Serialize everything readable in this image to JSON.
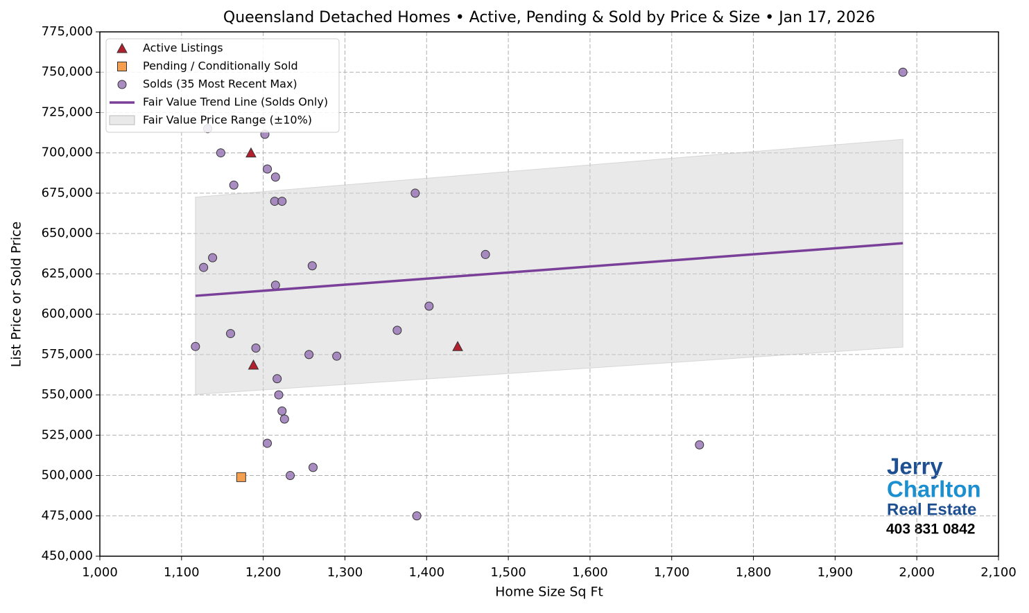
{
  "chart_data": {
    "type": "scatter",
    "title": "Queensland Detached Homes • Active, Pending & Sold by Price & Size • Jan 17, 2026",
    "x_label": "Home Size Sq Ft",
    "y_label": "List Price or Sold Price",
    "xlim": [
      1000,
      2100
    ],
    "ylim": [
      450000,
      775000
    ],
    "xticks": [
      {
        "value": 1000,
        "label": "1,000"
      },
      {
        "value": 1100,
        "label": "1,100"
      },
      {
        "value": 1200,
        "label": "1,200"
      },
      {
        "value": 1300,
        "label": "1,300"
      },
      {
        "value": 1400,
        "label": "1,400"
      },
      {
        "value": 1500,
        "label": "1,500"
      },
      {
        "value": 1600,
        "label": "1,600"
      },
      {
        "value": 1700,
        "label": "1,700"
      },
      {
        "value": 1800,
        "label": "1,800"
      },
      {
        "value": 1900,
        "label": "1,900"
      },
      {
        "value": 2000,
        "label": "2,000"
      },
      {
        "value": 2100,
        "label": "2,100"
      }
    ],
    "yticks": [
      {
        "value": 450000,
        "label": "450,000"
      },
      {
        "value": 475000,
        "label": "475,000"
      },
      {
        "value": 500000,
        "label": "500,000"
      },
      {
        "value": 525000,
        "label": "525,000"
      },
      {
        "value": 550000,
        "label": "550,000"
      },
      {
        "value": 575000,
        "label": "575,000"
      },
      {
        "value": 600000,
        "label": "600,000"
      },
      {
        "value": 625000,
        "label": "625,000"
      },
      {
        "value": 650000,
        "label": "650,000"
      },
      {
        "value": 675000,
        "label": "675,000"
      },
      {
        "value": 700000,
        "label": "700,000"
      },
      {
        "value": 725000,
        "label": "725,000"
      },
      {
        "value": 750000,
        "label": "750,000"
      },
      {
        "value": 775000,
        "label": "775,000"
      }
    ],
    "grid": true,
    "legend": "upper left",
    "series": [
      {
        "name": "Active Listings",
        "color": "#b2202e",
        "marker": "triangle",
        "x": [
          1185,
          1188,
          1438
        ],
        "values": [
          700000,
          568500,
          580000
        ]
      },
      {
        "name": "Pending / Conditionally Sold",
        "color": "#f5a050",
        "marker": "square",
        "x": [
          1173
        ],
        "values": [
          499000
        ]
      },
      {
        "name": "Solds (35 Most Recent Max)",
        "color": "#9a78b6",
        "marker": "circle",
        "x": [
          1983,
          1132,
          1202,
          1148,
          1205,
          1215,
          1164,
          1214,
          1223,
          1386,
          1472,
          1138,
          1127,
          1260,
          1215,
          1403,
          1364,
          1160,
          1117,
          1191,
          1256,
          1290,
          1217,
          1219,
          1223,
          1226,
          1205,
          1734,
          1261,
          1233,
          1388
        ],
        "values": [
          750000,
          715000,
          711500,
          700000,
          690000,
          685000,
          680000,
          670000,
          670000,
          675000,
          637000,
          635000,
          629000,
          630000,
          618000,
          605000,
          590000,
          588000,
          580000,
          579000,
          575000,
          574000,
          560000,
          550000,
          540000,
          535000,
          520000,
          519000,
          505000,
          500000,
          475000
        ]
      }
    ],
    "trend": {
      "name": "Fair Value Trend Line (Solds Only)",
      "color": "#7a3f98",
      "x": [
        1117,
        1983
      ],
      "values": [
        611400,
        644000
      ]
    },
    "band": {
      "name": "Fair Value Price Range (±10%)",
      "color": "#d4d4d4",
      "x": [
        1117,
        1983
      ],
      "lower": [
        550260,
        579600
      ],
      "upper": [
        672540,
        708400
      ]
    }
  },
  "logo": {
    "lines": [
      "Jerry",
      "Charlton",
      "Real Estate",
      "403 831 0842"
    ]
  }
}
